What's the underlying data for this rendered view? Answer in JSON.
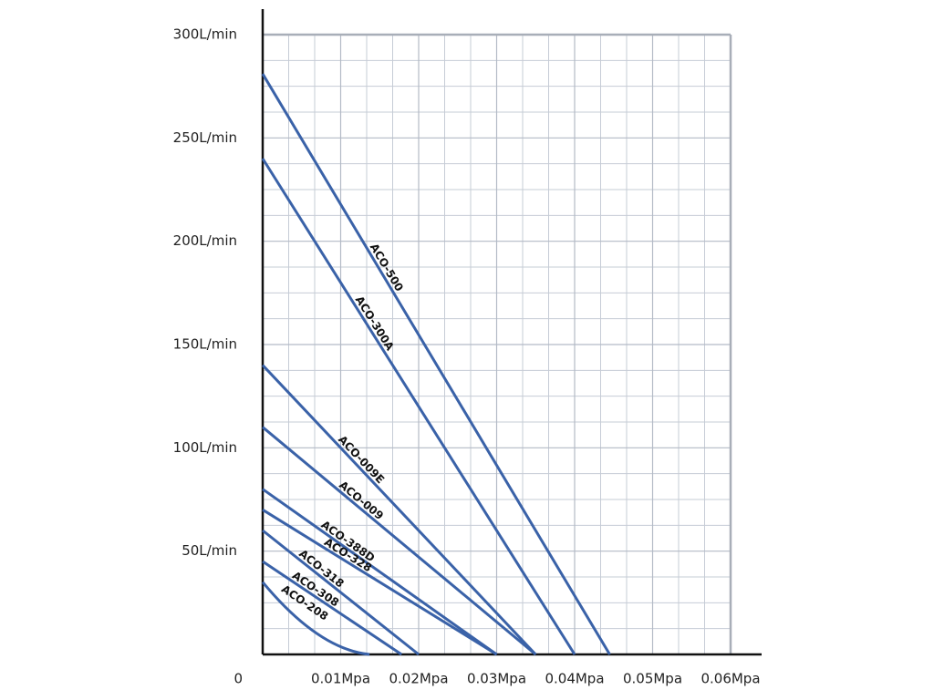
{
  "chart_data": {
    "type": "line",
    "xlim": [
      0,
      0.06
    ],
    "ylim": [
      0,
      300
    ],
    "xticks": [
      0,
      {
        "value": 0.01,
        "label": "0.01Mpa"
      },
      {
        "value": 0.02,
        "label": "0.02Mpa"
      },
      {
        "value": 0.03,
        "label": "0.03Mpa"
      },
      {
        "value": 0.04,
        "label": "0.04Mpa"
      },
      {
        "value": 0.05,
        "label": "0.05Mpa"
      },
      {
        "value": 0.06,
        "label": "0.06Mpa"
      }
    ],
    "yticks": [
      {
        "value": 50,
        "label": "50L/min"
      },
      {
        "value": 100,
        "label": "100L/min"
      },
      {
        "value": 150,
        "label": "150L/min"
      },
      {
        "value": 200,
        "label": "200L/min"
      },
      {
        "value": 250,
        "label": "250L/min"
      },
      {
        "value": 300,
        "label": "300L/min"
      }
    ],
    "grid": true,
    "series": [
      {
        "name": "ACO-500",
        "color": "#3a62a8",
        "x": [
          0,
          0.0445
        ],
        "values": [
          281,
          0
        ]
      },
      {
        "name": "ACO-300A",
        "color": "#3a62a8",
        "x": [
          0,
          0.04
        ],
        "values": [
          240,
          0
        ]
      },
      {
        "name": "ACO-009E",
        "color": "#3a62a8",
        "x": [
          0,
          0.035
        ],
        "values": [
          140,
          0
        ]
      },
      {
        "name": "ACO-009",
        "color": "#3a62a8",
        "x": [
          0,
          0.035
        ],
        "values": [
          110,
          0
        ]
      },
      {
        "name": "ACO-388D",
        "color": "#3a62a8",
        "x": [
          0,
          0.03
        ],
        "values": [
          80,
          0
        ]
      },
      {
        "name": "ACO-328",
        "color": "#3a62a8",
        "x": [
          0,
          0.03
        ],
        "values": [
          70,
          0
        ]
      },
      {
        "name": "ACO-318",
        "color": "#3a62a8",
        "x": [
          0,
          0.02
        ],
        "values": [
          60,
          0
        ]
      },
      {
        "name": "ACO-308",
        "color": "#3a62a8",
        "x": [
          0,
          0.0178
        ],
        "values": [
          45,
          0
        ]
      },
      {
        "name": "ACO-208",
        "color": "#3a62a8",
        "x": [
          0,
          0.007,
          0.0137
        ],
        "values": [
          35,
          10,
          0
        ]
      }
    ]
  }
}
